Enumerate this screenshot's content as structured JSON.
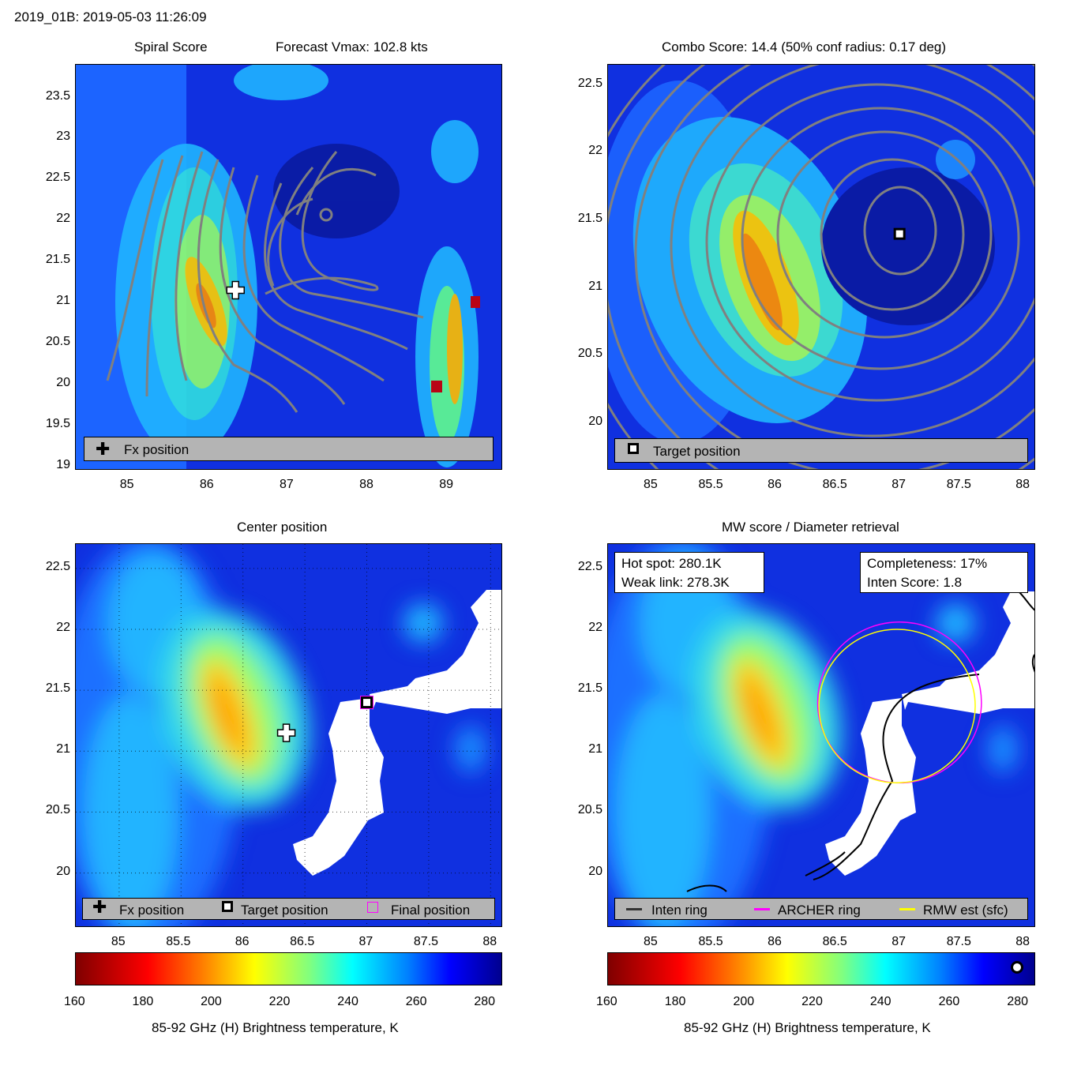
{
  "header": {
    "title": "2019_01B: 2019-05-03 11:26:09"
  },
  "panels": {
    "spiral": {
      "title_left": "Spiral Score",
      "title_right": "Forecast Vmax: 102.8 kts",
      "legend": [
        "Fx position"
      ]
    },
    "combo": {
      "title": "Combo Score: 14.4  (50% conf radius: 0.17 deg)",
      "legend": [
        "Target position"
      ]
    },
    "center": {
      "title": "Center position",
      "legend": [
        "Fx position",
        "Target position",
        "Final position"
      ]
    },
    "mw": {
      "title": "MW score / Diameter retrieval",
      "info_left": [
        "Hot spot: 280.1K",
        "Weak link: 278.3K"
      ],
      "info_right": [
        "Completeness: 17%",
        "Inten Score: 1.8"
      ],
      "legend": [
        "Inten ring",
        "ARCHER ring",
        "RMW est (sfc)"
      ]
    }
  },
  "colorbar": {
    "label": "85-92 GHz (H) Brightness temperature, K",
    "ticks": [
      "160",
      "180",
      "200",
      "220",
      "240",
      "260",
      "280"
    ]
  },
  "colors": {
    "ring_inten": "#333333",
    "ring_archer": "#ff00ff",
    "ring_rmw": "#ffff00",
    "contour": "#808080"
  },
  "chart_data": [
    {
      "type": "heatmap",
      "title": "Spiral Score",
      "x_ticks": [
        "85",
        "86",
        "87",
        "88",
        "89"
      ],
      "y_ticks": [
        "19",
        "19.5",
        "20",
        "20.5",
        "21",
        "21.5",
        "22",
        "22.5",
        "23",
        "23.5"
      ],
      "xlim": [
        84.35,
        89.7
      ],
      "ylim": [
        18.95,
        23.9
      ],
      "markers": [
        {
          "name": "Fx position",
          "x": 86.35,
          "y": 21.15
        }
      ]
    },
    {
      "type": "heatmap",
      "title": "Combo Score: 14.4  (50% conf radius: 0.17 deg)",
      "x_ticks": [
        "85",
        "85.5",
        "86",
        "86.5",
        "87",
        "87.5",
        "88"
      ],
      "y_ticks": [
        "20",
        "20.5",
        "21",
        "21.5",
        "22",
        "22.5"
      ],
      "xlim": [
        84.65,
        88.1
      ],
      "ylim": [
        19.65,
        22.65
      ],
      "markers": [
        {
          "name": "Target position",
          "x": 87.0,
          "y": 21.4
        }
      ]
    },
    {
      "type": "heatmap",
      "title": "Center position",
      "x_ticks": [
        "85",
        "85.5",
        "86",
        "86.5",
        "87",
        "87.5",
        "88"
      ],
      "y_ticks": [
        "20",
        "20.5",
        "21",
        "21.5",
        "22",
        "22.5"
      ],
      "xlim": [
        84.65,
        88.1
      ],
      "ylim": [
        19.55,
        22.7
      ],
      "markers": [
        {
          "name": "Fx position",
          "x": 86.35,
          "y": 21.15
        },
        {
          "name": "Target position",
          "x": 87.0,
          "y": 21.4
        },
        {
          "name": "Final position",
          "x": 87.0,
          "y": 21.4
        }
      ]
    },
    {
      "type": "heatmap",
      "title": "MW score / Diameter retrieval",
      "x_ticks": [
        "85",
        "85.5",
        "86",
        "86.5",
        "87",
        "87.5",
        "88"
      ],
      "y_ticks": [
        "20",
        "20.5",
        "21",
        "21.5",
        "22",
        "22.5"
      ],
      "xlim": [
        84.65,
        88.1
      ],
      "ylim": [
        19.55,
        22.7
      ],
      "rings": [
        {
          "name": "ARCHER ring",
          "x": 87.0,
          "y": 21.4,
          "r_deg": 0.66
        },
        {
          "name": "RMW est (sfc)",
          "x": 86.98,
          "y": 21.37,
          "r_deg": 0.63
        }
      ]
    }
  ]
}
